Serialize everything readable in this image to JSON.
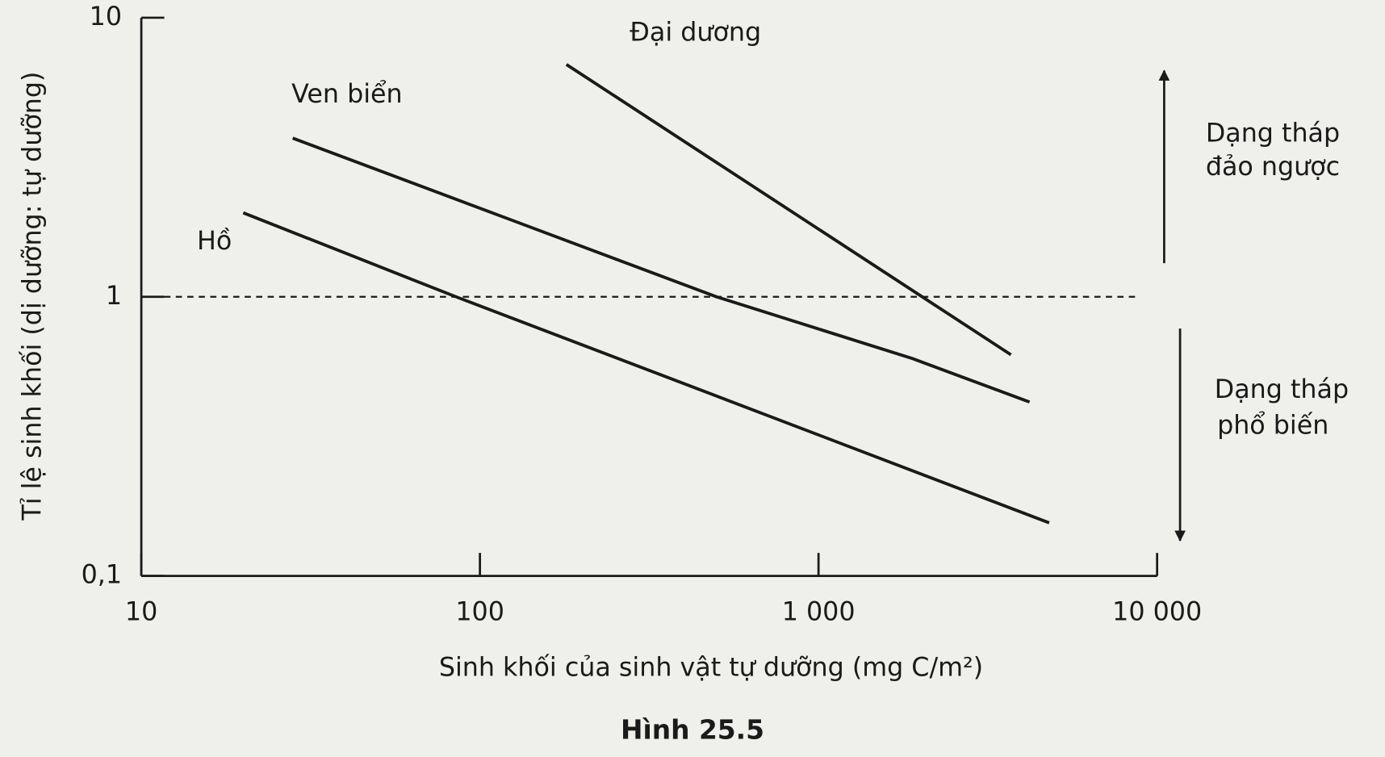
{
  "chart_data": {
    "type": "line",
    "title": "Hình 25.5",
    "xlabel": "Sinh khối của sinh vật tự dưỡng (mg C/m²)",
    "ylabel": "Tỉ lệ sinh khối (dị dưỡng: tự dưỡng)",
    "xscale": "log",
    "yscale": "log",
    "xlim": [
      10,
      10000
    ],
    "ylim": [
      0.1,
      10
    ],
    "xticks": [
      10,
      100,
      {
        "value": 1000,
        "label": "1 000"
      },
      {
        "value": 10000,
        "label": "10 000"
      }
    ],
    "yticks": [
      {
        "value": 0.1,
        "label": "0,1"
      },
      1,
      10
    ],
    "reference_line": 1,
    "series": [
      {
        "name": "Đại dương",
        "color": "#1a1a1a",
        "x": [
          180,
          3700
        ],
        "values": [
          6.8,
          0.62
        ]
      },
      {
        "name": "Ven biển",
        "color": "#1a1a1a",
        "x": [
          28,
          500,
          1900,
          4200
        ],
        "values": [
          3.7,
          1,
          0.6,
          0.42
        ]
      },
      {
        "name": "Hồ",
        "color": "#1a1a1a",
        "x": [
          20,
          85,
          4800
        ],
        "values": [
          2.0,
          1,
          0.155
        ]
      }
    ],
    "annotations": [
      [
        "Dạng tháp",
        "đảo ngược"
      ],
      [
        "Dạng tháp",
        "phổ biến"
      ]
    ]
  }
}
